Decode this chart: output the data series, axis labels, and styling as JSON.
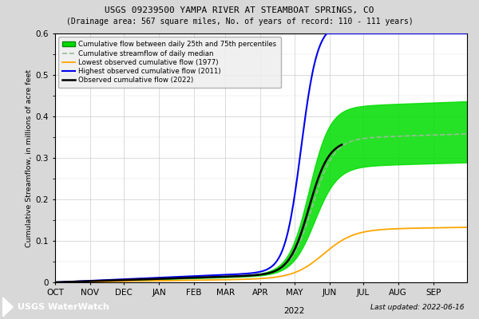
{
  "title_line1": "USGS 09239500 YAMPA RIVER AT STEAMBOAT SPRINGS, CO",
  "title_line2": "(Drainage area: 567 square miles, No. of years of record: 110 - 111 years)",
  "ylabel": "Cumulative Streamflow, in millions of acre feet",
  "xlabel_months": [
    "OCT",
    "NOV",
    "DEC",
    "JAN",
    "FEB",
    "MAR",
    "APR",
    "MAY",
    "JUN",
    "JUL",
    "AUG",
    "SEP"
  ],
  "xlabel_year": "2022",
  "ylim": [
    0,
    0.6
  ],
  "last_updated": "Last updated: 2022-06-16",
  "bg_color": "#d8d8d8",
  "plot_bg_color": "#ffffff",
  "fill_color": "#00dd00",
  "fill_alpha": 0.85,
  "median_color": "#99bb99",
  "lowest_color": "#ffa500",
  "highest_color": "#0000ee",
  "observed_color": "#000000",
  "legend_labels": [
    "Cumulative flow between daily 25th and 75th percentiles",
    "Cumulative streamflow of daily median",
    "Lowest observed cumulative flow (1977)",
    "Highest observed cumulative flow (2011)",
    "Observed cumulative flow (2022)"
  ],
  "logo_bg": "#003399",
  "logo_text": "USGS WaterWatch",
  "logo_text_color": "#ffffff"
}
